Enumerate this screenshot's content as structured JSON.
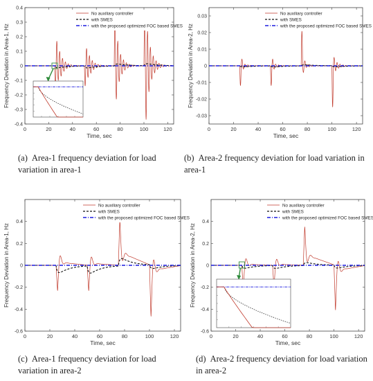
{
  "chart_data": [
    {
      "id": "a",
      "type": "line",
      "caption_label": "(a)",
      "caption": "Area-1 frequency deviation for load variation in area-1",
      "xlabel": "Time, sec",
      "ylabel": "Frequency Deviation in Area-1, Hz",
      "xlim": [
        0,
        125
      ],
      "ylim": [
        -0.4,
        0.4
      ],
      "xticks": [
        0,
        20,
        40,
        60,
        80,
        100,
        120
      ],
      "yticks": [
        -0.4,
        -0.3,
        -0.2,
        -0.1,
        0,
        0.1,
        0.2,
        0.3,
        0.4
      ],
      "ytick_labels": [
        "-0.4",
        "-0.3",
        "-0.2",
        "-0.1",
        "0",
        "0.1",
        "0.2",
        "0.3",
        "0.4"
      ],
      "legend_position": "top-right",
      "has_inset": true,
      "inset_position": "bottom-left",
      "events": [
        {
          "t": 25,
          "peaks": [
            -0.16,
            0.17,
            -0.1,
            0.1
          ],
          "smes": -0.02
        },
        {
          "t": 50,
          "peaks": [
            -0.14,
            0.12,
            -0.08,
            0.07
          ],
          "smes": -0.02
        },
        {
          "t": 75,
          "peaks": [
            0.3,
            -0.23,
            0.17,
            -0.11
          ],
          "smes": 0.02
        },
        {
          "t": 100,
          "peaks": [
            0.35,
            -0.37,
            0.24,
            -0.18
          ],
          "smes": 0.02
        }
      ],
      "series": [
        {
          "name": "No auxiliary controller",
          "color": "#c0392b",
          "dash": "solid"
        },
        {
          "name": "with SMES",
          "color": "#111111",
          "dash": "dashed"
        },
        {
          "name": "with the proposed optimized FOC based SMES",
          "color": "#1a1adf",
          "dash": "dashdot"
        }
      ]
    },
    {
      "id": "b",
      "type": "line",
      "caption_label": "(b)",
      "caption": "Area-2 frequency deviation for load variation in area-1",
      "xlabel": "Time, sec",
      "ylabel": "Frequency Deviation in Area-2, Hz",
      "xlim": [
        0,
        125
      ],
      "ylim": [
        -0.035,
        0.035
      ],
      "xticks": [
        0,
        20,
        40,
        60,
        80,
        100,
        120
      ],
      "yticks": [
        -0.03,
        -0.02,
        -0.01,
        0,
        0.01,
        0.02,
        0.03
      ],
      "ytick_labels": [
        "-0.03",
        "-0.02",
        "-0.01",
        "0",
        "0.01",
        "0.02",
        "0.03"
      ],
      "legend_position": "top-right",
      "has_inset": false,
      "events": [
        {
          "t": 25,
          "peaks": [
            -0.012,
            0.004,
            -0.002,
            0.001
          ],
          "smes": -0.001
        },
        {
          "t": 50,
          "peaks": [
            -0.012,
            0.004,
            -0.002,
            0.001
          ],
          "smes": -0.001
        },
        {
          "t": 75,
          "peaks": [
            0.021,
            -0.004,
            0.003,
            -0.001
          ],
          "smes": 0.001
        },
        {
          "t": 100,
          "peaks": [
            -0.025,
            0.005,
            -0.003,
            0.002
          ],
          "smes": -0.001
        }
      ],
      "series": [
        {
          "name": "No auxiliary controller",
          "color": "#c0392b",
          "dash": "solid"
        },
        {
          "name": "with SMES",
          "color": "#111111",
          "dash": "dashed"
        },
        {
          "name": "with the proposed optimized FOC based SMES",
          "color": "#1a1adf",
          "dash": "dashdot"
        }
      ]
    },
    {
      "id": "c",
      "type": "line",
      "caption_label": "(c)",
      "caption": "Area-1 frequency deviation for load variation in area-2",
      "xlabel": "Time, sec",
      "ylabel": "Frequency Deviation in Area-1, Hz",
      "xlim": [
        0,
        125
      ],
      "ylim": [
        -0.6,
        0.6
      ],
      "xticks": [
        0,
        20,
        40,
        60,
        80,
        100,
        120
      ],
      "yticks": [
        -0.6,
        -0.4,
        -0.2,
        0,
        0.2,
        0.4
      ],
      "ytick_labels": [
        "-0.6",
        "-0.4",
        "-0.2",
        "0",
        "0.2",
        "0.4"
      ],
      "legend_position": "top-right",
      "has_inset": false,
      "events": [
        {
          "t": 25,
          "peaks": [
            -0.24,
            0.03,
            -0.01
          ],
          "smes": -0.1
        },
        {
          "t": 50,
          "peaks": [
            -0.24,
            0.02,
            -0.01
          ],
          "smes": -0.1
        },
        {
          "t": 75,
          "peaks": [
            0.42,
            0.12,
            0.03
          ],
          "smes": 0.1
        },
        {
          "t": 100,
          "peaks": [
            -0.48,
            -0.05,
            -0.02
          ],
          "smes": -0.05
        }
      ],
      "series": [
        {
          "name": "No auxiliary controller",
          "color": "#c0392b",
          "dash": "solid"
        },
        {
          "name": "with SMES",
          "color": "#111111",
          "dash": "dashed"
        },
        {
          "name": "with the proposed optimized FOC based SMES",
          "color": "#1a1adf",
          "dash": "dashdot"
        }
      ]
    },
    {
      "id": "d",
      "type": "line",
      "caption_label": "(d)",
      "caption": "Area-2 frequency deviation for load variation in area-2",
      "xlabel": "Time, sec",
      "ylabel": "Frequency Deviation in Area-2, Hz",
      "xlim": [
        0,
        125
      ],
      "ylim": [
        -0.6,
        0.6
      ],
      "xticks": [
        0,
        20,
        40,
        60,
        80,
        100,
        120
      ],
      "yticks": [
        -0.6,
        -0.4,
        -0.2,
        0,
        0.2,
        0.4
      ],
      "ytick_labels": [
        "-0.6",
        "-0.4",
        "-0.2",
        "0",
        "0.2",
        "0.4"
      ],
      "legend_position": "top-right",
      "has_inset": true,
      "inset_position": "bottom-left",
      "events": [
        {
          "t": 25,
          "peaks": [
            -0.22,
            0.01,
            -0.01
          ],
          "smes": -0.04
        },
        {
          "t": 50,
          "peaks": [
            -0.2,
            0.01,
            -0.01
          ],
          "smes": -0.04
        },
        {
          "t": 75,
          "peaks": [
            0.36,
            0.1,
            0.02
          ],
          "smes": 0.04
        },
        {
          "t": 100,
          "peaks": [
            -0.42,
            -0.05,
            -0.02
          ],
          "smes": -0.04
        }
      ],
      "series": [
        {
          "name": "No auxiliary controller",
          "color": "#c0392b",
          "dash": "solid"
        },
        {
          "name": "with SMES",
          "color": "#111111",
          "dash": "dashed"
        },
        {
          "name": "with the proposed optimized FOC based SMES",
          "color": "#1a1adf",
          "dash": "dashdot"
        }
      ]
    }
  ]
}
